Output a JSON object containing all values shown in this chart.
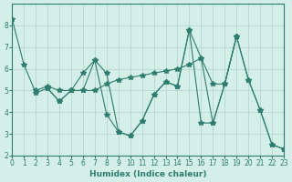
{
  "xlabel": "Humidex (Indice chaleur)",
  "ylabel": "",
  "background_color": "#d4eee8",
  "line_color": "#2e7d6e",
  "grid_color": "#b0d4cc",
  "xlim": [
    0,
    23
  ],
  "ylim": [
    2,
    9
  ],
  "yticks": [
    2,
    3,
    4,
    5,
    6,
    7,
    8
  ],
  "xticks": [
    0,
    1,
    2,
    3,
    4,
    5,
    6,
    7,
    8,
    9,
    10,
    11,
    12,
    13,
    14,
    15,
    16,
    17,
    18,
    19,
    20,
    21,
    22,
    23
  ],
  "series1": [
    [
      0,
      8.3
    ],
    [
      1,
      6.2
    ],
    [
      2,
      4.9
    ],
    [
      3,
      5.1
    ],
    [
      4,
      4.5
    ],
    [
      5,
      5.0
    ],
    [
      6,
      5.0
    ],
    [
      7,
      6.4
    ],
    [
      8,
      5.8
    ],
    [
      9,
      3.1
    ],
    [
      10,
      2.9
    ],
    [
      11,
      3.6
    ],
    [
      12,
      4.8
    ],
    [
      13,
      5.4
    ],
    [
      14,
      5.2
    ],
    [
      15,
      7.8
    ],
    [
      16,
      6.5
    ],
    [
      17,
      3.5
    ],
    [
      18,
      5.3
    ],
    [
      19,
      7.5
    ],
    [
      20,
      5.5
    ],
    [
      21,
      4.1
    ],
    [
      22,
      2.5
    ],
    [
      23,
      2.3
    ]
  ],
  "series2": [
    [
      2,
      5.0
    ],
    [
      3,
      5.2
    ],
    [
      4,
      5.0
    ],
    [
      5,
      5.0
    ],
    [
      6,
      5.0
    ],
    [
      7,
      5.0
    ],
    [
      8,
      5.3
    ],
    [
      9,
      5.5
    ],
    [
      10,
      5.6
    ],
    [
      11,
      5.7
    ],
    [
      12,
      5.8
    ],
    [
      13,
      5.9
    ],
    [
      14,
      6.0
    ],
    [
      15,
      6.2
    ],
    [
      16,
      6.5
    ],
    [
      17,
      5.3
    ],
    [
      18,
      5.3
    ],
    [
      19,
      7.5
    ]
  ],
  "series3": [
    [
      3,
      5.1
    ],
    [
      4,
      4.5
    ],
    [
      5,
      5.0
    ],
    [
      6,
      5.8
    ],
    [
      7,
      6.4
    ],
    [
      8,
      3.9
    ],
    [
      9,
      3.1
    ],
    [
      10,
      2.9
    ],
    [
      11,
      3.6
    ],
    [
      12,
      4.8
    ],
    [
      13,
      5.4
    ],
    [
      14,
      5.2
    ],
    [
      15,
      7.8
    ],
    [
      16,
      3.5
    ],
    [
      17,
      3.5
    ],
    [
      18,
      5.3
    ],
    [
      19,
      7.5
    ],
    [
      20,
      5.5
    ],
    [
      21,
      4.1
    ],
    [
      22,
      2.5
    ],
    [
      23,
      2.3
    ]
  ]
}
